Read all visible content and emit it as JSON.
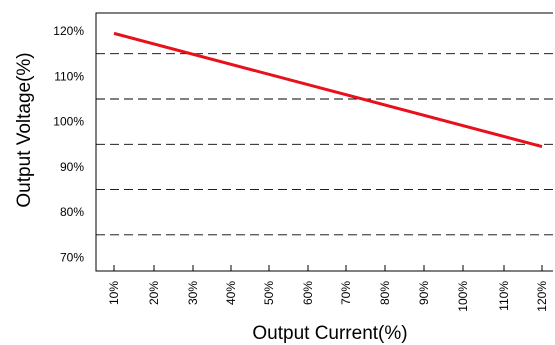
{
  "chart_data": {
    "type": "line",
    "xlabel": "Output  Current(%)",
    "ylabel": "Output Voltage(%)",
    "x_ticks": [
      "10%",
      "20%",
      "30%",
      "40%",
      "50%",
      "60%",
      "70%",
      "80%",
      "90%",
      "100%",
      "110%",
      "120%"
    ],
    "y_ticks": [
      "70%",
      "80%",
      "90%",
      "100%",
      "110%",
      "120%"
    ],
    "x_tick_values": [
      10,
      20,
      30,
      40,
      50,
      60,
      70,
      80,
      90,
      100,
      110,
      120
    ],
    "y_tick_values": [
      70,
      80,
      90,
      100,
      110,
      120
    ],
    "xlim": [
      10,
      120
    ],
    "ylim": [
      67,
      124
    ],
    "hlines": [
      75,
      85,
      95,
      105,
      115
    ],
    "series": [
      {
        "x": [
          10,
          120
        ],
        "y": [
          119.5,
          94.5
        ],
        "color": "#e8101a"
      }
    ],
    "grid": "dashed horizontal lines",
    "legend": "none"
  }
}
